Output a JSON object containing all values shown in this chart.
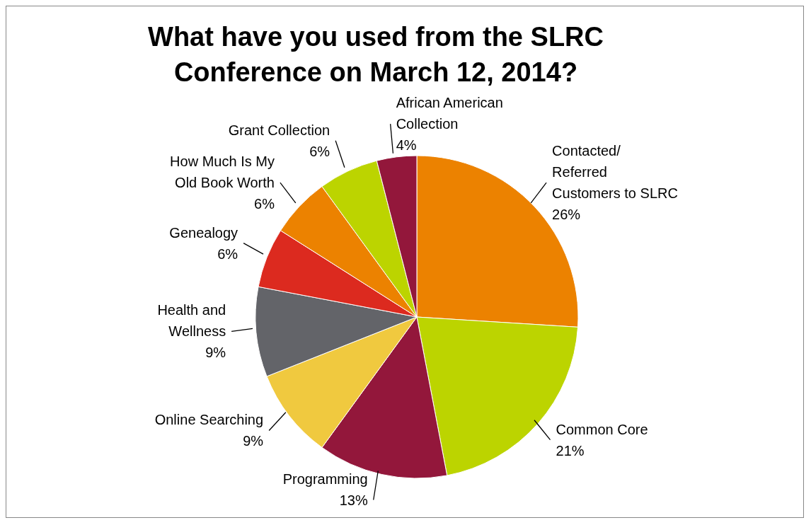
{
  "chart_data": {
    "type": "pie",
    "title": "What have you used from the SLRC Conference on March 12, 2014?",
    "categories": [
      "Contacted/Referred Customers to SLRC",
      "Common Core",
      "Programming",
      "Online Searching",
      "Health and Wellness",
      "Genealogy",
      "How Much Is My Old Book Worth",
      "Grant Collection",
      "African American Collection"
    ],
    "values": [
      26,
      21,
      13,
      9,
      9,
      6,
      6,
      6,
      4
    ],
    "value_labels": [
      "26%",
      "21%",
      "13%",
      "9%",
      "9%",
      "6%",
      "6%",
      "6%",
      "4%"
    ],
    "colors": [
      "#ec8200",
      "#bcd400",
      "#93173b",
      "#f0c93f",
      "#636469",
      "#dc2a1f",
      "#ec8200",
      "#bcd400",
      "#93173b"
    ],
    "legend": false
  }
}
